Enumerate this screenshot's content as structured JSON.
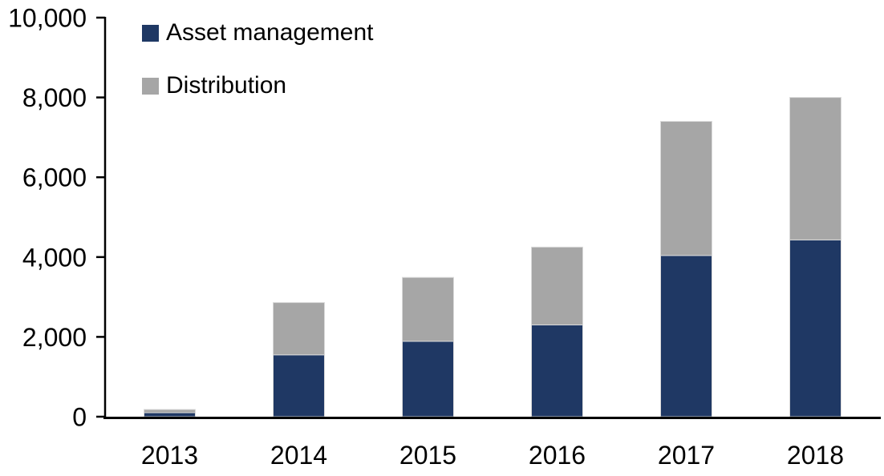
{
  "chart_data": {
    "type": "bar",
    "stacked": true,
    "title": "",
    "categories": [
      "2013",
      "2014",
      "2015",
      "2016",
      "2017",
      "2018"
    ],
    "series": [
      {
        "name": "Asset management",
        "color": "#1F3864",
        "values": [
          100,
          1550,
          1890,
          2300,
          4040,
          4430
        ]
      },
      {
        "name": "Distribution",
        "color": "#A6A6A6",
        "values": [
          80,
          1310,
          1600,
          1950,
          3360,
          3570
        ]
      }
    ],
    "stacked_totals": [
      180,
      2860,
      3490,
      4250,
      7400,
      8000
    ],
    "y_axis": {
      "min": 0,
      "max": 10000,
      "tick_interval": 2000,
      "tick_labels": [
        "0",
        "2,000",
        "4,000",
        "6,000",
        "8,000",
        "10,000"
      ]
    },
    "x_axis": {
      "tick_labels": [
        "2013",
        "2014",
        "2015",
        "2016",
        "2017",
        "2018"
      ]
    },
    "legend": {
      "position": "top-left-inside",
      "entries": [
        "Asset management",
        "Distribution"
      ]
    },
    "grid": false,
    "colors": {
      "axis": "#000000",
      "text": "#000000",
      "bar_border": "#D9D9D9",
      "background": "#FFFFFF"
    }
  }
}
